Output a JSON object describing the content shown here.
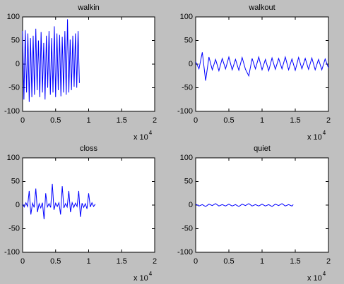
{
  "chart_data": [
    {
      "type": "line",
      "title": "walkin",
      "x_multiplier": "x 10",
      "x_exponent": "4",
      "xlim": [
        0,
        2
      ],
      "xticks": [
        0,
        0.5,
        1,
        1.5,
        2
      ],
      "ylim": [
        -100,
        100
      ],
      "yticks": [
        -100,
        -50,
        0,
        50,
        100
      ],
      "series": [
        {
          "color": "#0000ff",
          "x": [
            0,
            0.02,
            0.04,
            0.06,
            0.08,
            0.1,
            0.12,
            0.14,
            0.16,
            0.18,
            0.2,
            0.22,
            0.24,
            0.26,
            0.28,
            0.3,
            0.32,
            0.34,
            0.36,
            0.38,
            0.4,
            0.42,
            0.44,
            0.46,
            0.48,
            0.5,
            0.52,
            0.54,
            0.56,
            0.58,
            0.6,
            0.62,
            0.64,
            0.66,
            0.68,
            0.7,
            0.72,
            0.74,
            0.76,
            0.78,
            0.8,
            0.82,
            0.84,
            0.86
          ],
          "values": [
            70,
            -75,
            72,
            -60,
            65,
            -80,
            55,
            -70,
            60,
            -65,
            75,
            -55,
            50,
            -70,
            68,
            -60,
            45,
            -75,
            60,
            -50,
            70,
            -65,
            55,
            -60,
            80,
            -70,
            65,
            -55,
            62,
            -68,
            58,
            -60,
            70,
            -65,
            95,
            -60,
            52,
            -55,
            60,
            -48,
            65,
            -50,
            70,
            -40
          ]
        }
      ]
    },
    {
      "type": "line",
      "title": "walkout",
      "x_multiplier": "x 10",
      "x_exponent": "4",
      "xlim": [
        0,
        2
      ],
      "xticks": [
        0,
        0.5,
        1,
        1.5,
        2
      ],
      "ylim": [
        -100,
        100
      ],
      "yticks": [
        -100,
        -50,
        0,
        50,
        100
      ],
      "series": [
        {
          "color": "#0000ff",
          "x": [
            0,
            0.05,
            0.1,
            0.15,
            0.2,
            0.25,
            0.3,
            0.35,
            0.4,
            0.45,
            0.5,
            0.55,
            0.6,
            0.65,
            0.7,
            0.75,
            0.8,
            0.85,
            0.9,
            0.95,
            1,
            1.05,
            1.1,
            1.15,
            1.2,
            1.25,
            1.3,
            1.35,
            1.4,
            1.45,
            1.5,
            1.55,
            1.6,
            1.65,
            1.7,
            1.75,
            1.8,
            1.85,
            1.9,
            1.95,
            2
          ],
          "values": [
            5,
            -10,
            25,
            -35,
            15,
            -12,
            10,
            -14,
            12,
            -10,
            15,
            -12,
            10,
            -13,
            14,
            -11,
            -25,
            12,
            -10,
            15,
            -12,
            10,
            -14,
            13,
            -11,
            12,
            -10,
            15,
            -12,
            11,
            -13,
            14,
            -10,
            12,
            -11,
            13,
            -12,
            10,
            -12,
            11,
            -8
          ]
        }
      ]
    },
    {
      "type": "line",
      "title": "closs",
      "x_multiplier": "x 10",
      "x_exponent": "4",
      "xlim": [
        0,
        2
      ],
      "xticks": [
        0,
        0.5,
        1,
        1.5,
        2
      ],
      "ylim": [
        -100,
        100
      ],
      "yticks": [
        -100,
        -50,
        0,
        50,
        100
      ],
      "series": [
        {
          "color": "#0000ff",
          "x": [
            0,
            0.025,
            0.05,
            0.075,
            0.1,
            0.125,
            0.15,
            0.175,
            0.2,
            0.225,
            0.25,
            0.275,
            0.3,
            0.325,
            0.35,
            0.375,
            0.4,
            0.425,
            0.45,
            0.475,
            0.5,
            0.525,
            0.55,
            0.575,
            0.6,
            0.625,
            0.65,
            0.675,
            0.7,
            0.725,
            0.75,
            0.775,
            0.8,
            0.825,
            0.85,
            0.875,
            0.9,
            0.925,
            0.95,
            0.975,
            1,
            1.025,
            1.05,
            1.075,
            1.1
          ],
          "values": [
            2,
            -4,
            5,
            -3,
            30,
            -20,
            4,
            -5,
            35,
            -15,
            3,
            -6,
            5,
            -30,
            25,
            -4,
            3,
            -5,
            45,
            -10,
            4,
            -3,
            5,
            -20,
            40,
            -6,
            3,
            -4,
            30,
            -15,
            5,
            -5,
            4,
            -3,
            30,
            -25,
            4,
            -5,
            3,
            -8,
            25,
            -4,
            5,
            -3,
            2
          ]
        }
      ]
    },
    {
      "type": "line",
      "title": "quiet",
      "x_multiplier": "x 10",
      "x_exponent": "4",
      "xlim": [
        0,
        2
      ],
      "xticks": [
        0,
        0.5,
        1,
        1.5,
        2
      ],
      "ylim": [
        -100,
        100
      ],
      "yticks": [
        -100,
        -50,
        0,
        50,
        100
      ],
      "series": [
        {
          "color": "#0000ff",
          "x": [
            0,
            0.05,
            0.1,
            0.15,
            0.2,
            0.25,
            0.3,
            0.35,
            0.4,
            0.45,
            0.5,
            0.55,
            0.6,
            0.65,
            0.7,
            0.75,
            0.8,
            0.85,
            0.9,
            0.95,
            1,
            1.05,
            1.1,
            1.15,
            1.2,
            1.25,
            1.3,
            1.35,
            1.4,
            1.45,
            1.47
          ],
          "values": [
            2,
            -2,
            1,
            -3,
            2,
            -1,
            3,
            -2,
            1,
            -2,
            2,
            -2,
            1,
            -3,
            2,
            -1,
            3,
            -2,
            1,
            -2,
            2,
            -2,
            1,
            -3,
            2,
            -1,
            3,
            -2,
            1,
            -2,
            1
          ]
        }
      ]
    }
  ]
}
